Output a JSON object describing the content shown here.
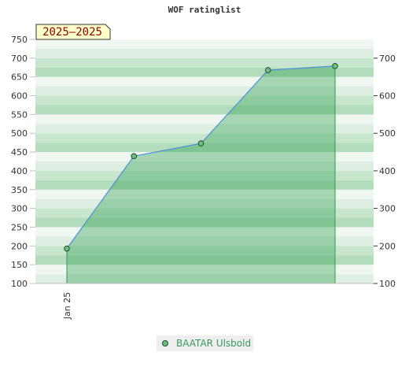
{
  "chart_data": {
    "type": "area",
    "title": "WOF ratinglist",
    "badge": "2025–2025",
    "xlabel": "",
    "ylabel": "",
    "x_tick_labels": [
      "Jan 25"
    ],
    "ylim": [
      100,
      750
    ],
    "y_ticks_left": [
      100,
      150,
      200,
      250,
      300,
      350,
      400,
      450,
      500,
      550,
      600,
      650,
      700,
      750
    ],
    "y_ticks_right": [
      100,
      200,
      300,
      400,
      500,
      600,
      700
    ],
    "grid": "horizontal banded",
    "legend_position": "bottom-center",
    "series": [
      {
        "name": "BAATAR Ulsbold",
        "values": [
          193,
          439,
          473,
          668,
          679
        ],
        "color": "#4a90d9",
        "fill": "#2e9e4e",
        "marker_color": "#6fbf7f"
      }
    ]
  }
}
